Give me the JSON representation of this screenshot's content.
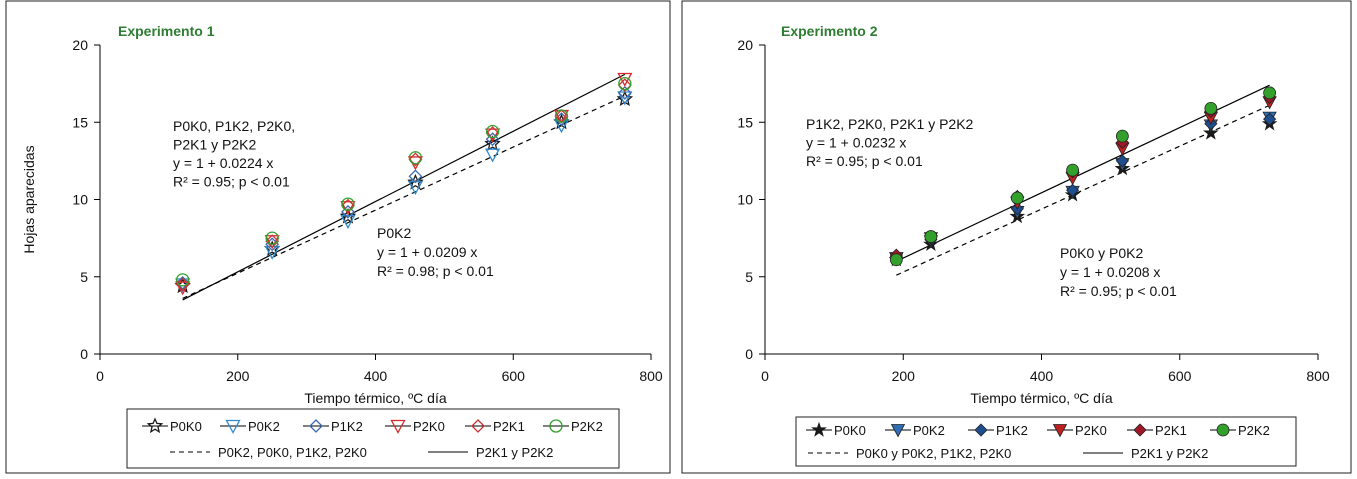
{
  "chart_data": [
    {
      "type": "scatter",
      "title": "Experimento 1",
      "xlabel": "Tiempo térmico, ºC día",
      "ylabel": "Hojas aparecidas",
      "xlim": [
        0,
        800
      ],
      "ylim": [
        0,
        20
      ],
      "xticks": [
        "0",
        "200",
        "400",
        "600",
        "800"
      ],
      "yticks": [
        "0",
        "5",
        "10",
        "15",
        "20"
      ],
      "grid": false,
      "legend_position": "bottom",
      "x": [
        120,
        250,
        360,
        458,
        570,
        670,
        762
      ],
      "series": [
        {
          "name": "P0K0",
          "marker": "open-star",
          "color": "#1a1a1a",
          "values": [
            4.4,
            6.8,
            8.9,
            11.1,
            13.6,
            15.0,
            16.5
          ]
        },
        {
          "name": "P0K2",
          "marker": "open-triangle-down",
          "color": "#2e8bd0",
          "values": [
            4.5,
            6.6,
            8.6,
            10.8,
            12.9,
            14.8,
            16.6
          ]
        },
        {
          "name": "P1K2",
          "marker": "open-diamond",
          "color": "#3a6ab0",
          "values": [
            4.6,
            7.1,
            9.2,
            11.5,
            13.9,
            15.2,
            16.9
          ]
        },
        {
          "name": "P2K0",
          "marker": "open-triangle-down",
          "color": "#d42a2a",
          "values": [
            4.3,
            7.3,
            9.5,
            12.4,
            14.2,
            15.4,
            17.8
          ]
        },
        {
          "name": "P2K1",
          "marker": "open-diamond",
          "color": "#c83232",
          "values": [
            4.5,
            7.3,
            9.6,
            12.6,
            14.3,
            15.4,
            17.4
          ]
        },
        {
          "name": "P2K2",
          "marker": "open-circle",
          "color": "#33a02c",
          "values": [
            4.8,
            7.5,
            9.7,
            12.7,
            14.4,
            15.4,
            17.5
          ]
        }
      ],
      "fits": [
        {
          "name": "P0K2, P0K0, P1K2, P2K0",
          "style": "dashed",
          "x": [
            120,
            762
          ],
          "y": [
            3.6,
            16.7
          ]
        },
        {
          "name": "P2K1 y P2K2",
          "style": "solid",
          "x": [
            120,
            762
          ],
          "y": [
            3.5,
            18.1
          ]
        }
      ],
      "annotations": [
        {
          "lines": [
            "P0K0, P1K2, P2K0,",
            "P2K1 y P2K2",
            "y = 1 + 0.0224 x",
            "R² = 0.95; p < 0.01"
          ]
        },
        {
          "lines": [
            "P0K2",
            "y = 1 + 0.0209 x",
            "R² = 0.98; p < 0.01"
          ]
        }
      ]
    },
    {
      "type": "scatter",
      "title": "Experimento 2",
      "xlabel": "Tiempo térmico, ºC día",
      "ylabel": "",
      "xlim": [
        0,
        800
      ],
      "ylim": [
        0,
        20
      ],
      "xticks": [
        "0",
        "200",
        "400",
        "600",
        "800"
      ],
      "yticks": [
        "0",
        "5",
        "10",
        "15",
        "20"
      ],
      "grid": false,
      "legend_position": "bottom",
      "x": [
        190,
        240,
        365,
        445,
        517,
        645,
        730
      ],
      "series": [
        {
          "name": "P0K0",
          "marker": "filled-star",
          "color": "#1a1a1a",
          "values": [
            6.1,
            7.1,
            8.9,
            10.3,
            12.0,
            14.3,
            14.9
          ]
        },
        {
          "name": "P0K2",
          "marker": "filled-triangle-down",
          "color": "#2e6fb5",
          "values": [
            6.2,
            7.3,
            9.2,
            10.5,
            12.3,
            14.8,
            15.3
          ]
        },
        {
          "name": "P1K2",
          "marker": "filled-diamond",
          "color": "#1f4e8f",
          "values": [
            6.3,
            7.4,
            9.4,
            10.6,
            12.5,
            14.9,
            15.2
          ]
        },
        {
          "name": "P2K0",
          "marker": "filled-triangle-down",
          "color": "#c02020",
          "values": [
            6.2,
            7.5,
            9.8,
            11.4,
            13.3,
            15.3,
            16.3
          ]
        },
        {
          "name": "P2K1",
          "marker": "filled-diamond",
          "color": "#a01828",
          "values": [
            6.4,
            7.6,
            10.2,
            11.8,
            13.7,
            15.7,
            16.6
          ]
        },
        {
          "name": "P2K2",
          "marker": "filled-circle",
          "color": "#33a02c",
          "values": [
            6.1,
            7.6,
            10.1,
            11.9,
            14.1,
            15.9,
            16.9
          ]
        }
      ],
      "fits": [
        {
          "name": "P0K0 y P0K2, P1K2, P2K0",
          "style": "dashed",
          "x": [
            190,
            730
          ],
          "y": [
            5.1,
            16.1
          ]
        },
        {
          "name": "P2K1 y P2K2",
          "style": "solid",
          "x": [
            190,
            730
          ],
          "y": [
            6.0,
            17.4
          ]
        }
      ],
      "annotations": [
        {
          "lines": [
            "P1K2, P2K0, P2K1 y P2K2",
            "y = 1 + 0.0232 x",
            "R² = 0.95; p < 0.01"
          ]
        },
        {
          "lines": [
            "P0K0 y P0K2",
            "y = 1 + 0.0208 x",
            "R² = 0.95; p < 0.01"
          ]
        }
      ]
    }
  ]
}
